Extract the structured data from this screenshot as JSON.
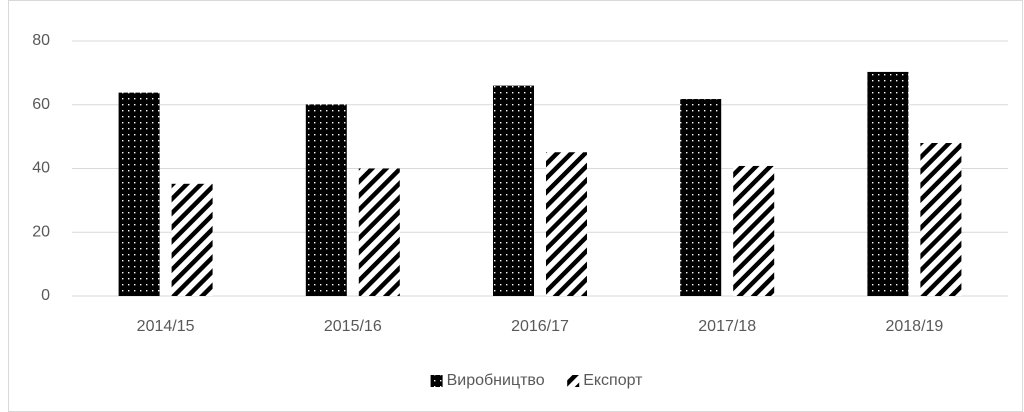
{
  "chart_data": {
    "type": "bar",
    "categories": [
      "2014/15",
      "2015/16",
      "2016/17",
      "2017/18",
      "2018/19"
    ],
    "series": [
      {
        "name": "Виробництво",
        "color": "#000000",
        "pattern": "dots",
        "values": [
          63.8,
          60.1,
          66,
          61.8,
          70.3
        ]
      },
      {
        "name": "Експорт",
        "color": "#000000",
        "pattern": "diagonal",
        "values": [
          35.2,
          40,
          45.1,
          40.8,
          48
        ]
      }
    ],
    "ylim": [
      0,
      80
    ],
    "yticks": [
      0,
      20,
      40,
      60,
      80
    ],
    "grid": true,
    "legend": "bottom"
  }
}
